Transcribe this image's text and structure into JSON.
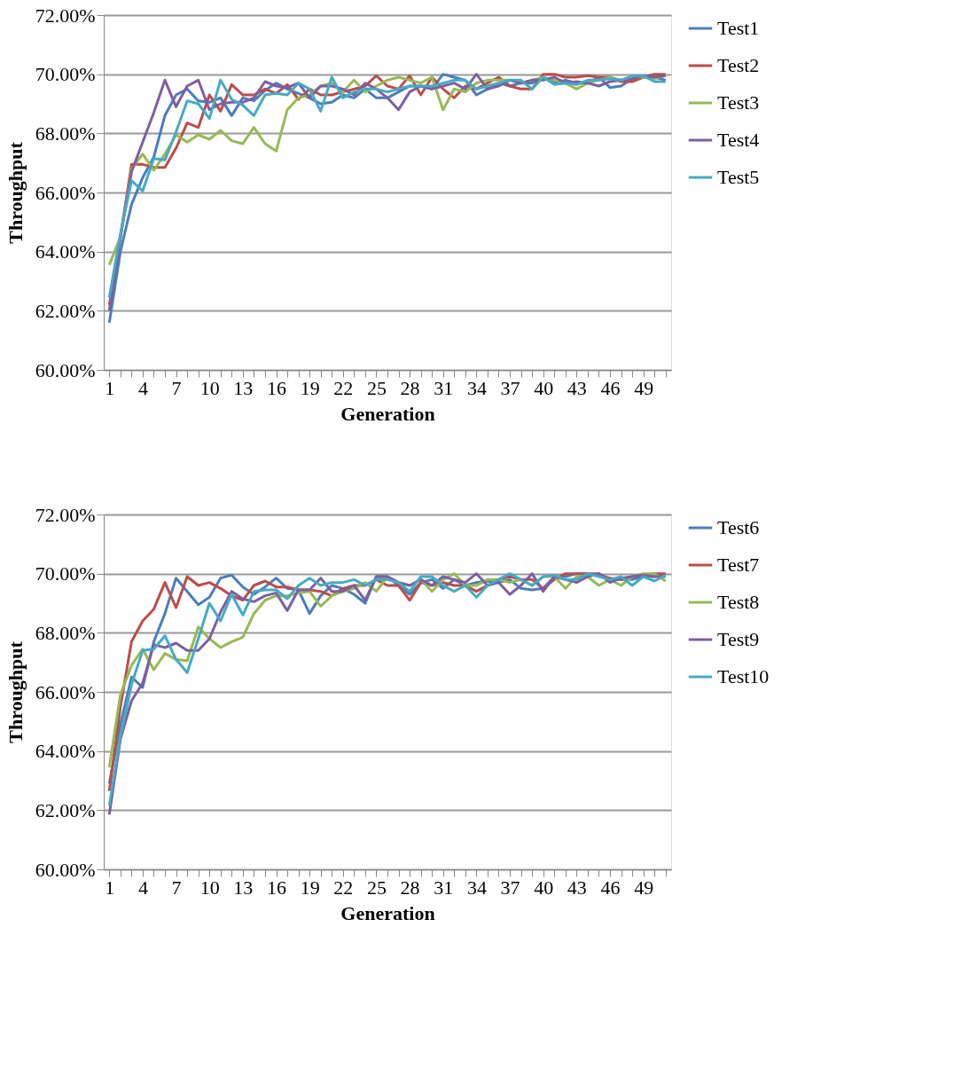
{
  "chart_data": [
    {
      "type": "line",
      "xlabel": "Generation",
      "ylabel": "Throughput",
      "legend": "right",
      "grid": "y",
      "marker": "none",
      "line_style": "solid",
      "categories": [
        "1",
        null,
        null,
        "4",
        null,
        null,
        "7",
        null,
        null,
        "10",
        null,
        null,
        "13",
        null,
        null,
        "16",
        null,
        null,
        "19",
        null,
        null,
        "22",
        null,
        null,
        "25",
        null,
        null,
        "28",
        null,
        null,
        "31",
        null,
        null,
        "34",
        null,
        null,
        "37",
        null,
        null,
        "40",
        null,
        null,
        "43",
        null,
        null,
        "46",
        null,
        null,
        "49",
        null,
        null
      ],
      "ylim": [
        60,
        72
      ],
      "yticks": [
        {
          "value": 60,
          "label": "60.00%"
        },
        {
          "value": 62,
          "label": "62.00%"
        },
        {
          "value": 64,
          "label": "64.00%"
        },
        {
          "value": 66,
          "label": "66.00%"
        },
        {
          "value": 68,
          "label": "68.00%"
        },
        {
          "value": 70,
          "label": "70.00%"
        },
        {
          "value": 72,
          "label": "72.00%"
        }
      ],
      "series": [
        {
          "name": "Test1",
          "color": "#4a7ebb",
          "values": [
            61.6,
            64.0,
            65.6,
            66.5,
            67.2,
            68.6,
            69.3,
            69.5,
            69.1,
            69.05,
            69.2,
            68.6,
            69.2,
            69.1,
            69.45,
            69.7,
            69.5,
            69.35,
            69.2,
            69.0,
            69.05,
            69.3,
            69.2,
            69.5,
            69.2,
            69.2,
            69.4,
            69.6,
            69.6,
            69.5,
            70.0,
            69.9,
            69.8,
            69.3,
            69.5,
            69.7,
            69.6,
            69.7,
            69.7,
            69.9,
            69.7,
            69.8,
            69.7,
            69.7,
            69.9,
            69.55,
            69.6,
            69.85,
            69.9,
            69.9,
            69.8
          ]
        },
        {
          "name": "Test2",
          "color": "#be4b48",
          "values": [
            62.2,
            64.5,
            66.95,
            66.95,
            66.85,
            66.85,
            67.5,
            68.35,
            68.2,
            69.3,
            68.75,
            69.65,
            69.3,
            69.3,
            69.5,
            69.35,
            69.65,
            69.15,
            69.5,
            69.3,
            69.3,
            69.4,
            69.5,
            69.6,
            69.95,
            69.6,
            69.5,
            69.95,
            69.3,
            69.9,
            69.5,
            69.2,
            69.6,
            69.5,
            69.7,
            69.9,
            69.6,
            69.5,
            69.5,
            70.0,
            70.0,
            69.9,
            69.9,
            69.95,
            69.9,
            69.9,
            69.75,
            69.75,
            69.9,
            70.0,
            70.0
          ]
        },
        {
          "name": "Test3",
          "color": "#98b954",
          "values": [
            63.55,
            64.5,
            66.8,
            67.3,
            66.75,
            67.3,
            67.95,
            67.7,
            67.95,
            67.8,
            68.1,
            67.75,
            67.65,
            68.2,
            67.65,
            67.4,
            68.8,
            69.2,
            69.3,
            69.6,
            69.7,
            69.4,
            69.8,
            69.4,
            69.6,
            69.8,
            69.9,
            69.8,
            69.7,
            69.9,
            68.8,
            69.5,
            69.4,
            69.7,
            69.8,
            69.8,
            69.8,
            69.7,
            69.8,
            69.9,
            69.8,
            69.7,
            69.5,
            69.7,
            69.8,
            69.9,
            69.8,
            69.9,
            69.9,
            69.85,
            69.95
          ]
        },
        {
          "name": "Test4",
          "color": "#7d5fa0",
          "values": [
            62.0,
            64.5,
            66.7,
            67.7,
            68.7,
            69.8,
            68.9,
            69.6,
            69.8,
            68.8,
            69.0,
            69.05,
            69.05,
            69.2,
            69.75,
            69.6,
            69.55,
            69.7,
            69.2,
            69.6,
            69.6,
            69.5,
            69.3,
            69.7,
            69.5,
            69.2,
            68.8,
            69.4,
            69.6,
            69.5,
            69.6,
            69.7,
            69.5,
            70.0,
            69.5,
            69.6,
            69.8,
            69.7,
            69.8,
            69.8,
            69.9,
            69.7,
            69.75,
            69.7,
            69.6,
            69.75,
            69.8,
            69.85,
            69.95,
            69.9,
            69.95
          ]
        },
        {
          "name": "Test5",
          "color": "#46aac5",
          "values": [
            62.45,
            64.6,
            66.4,
            66.05,
            67.15,
            67.1,
            68.05,
            69.1,
            69.0,
            68.5,
            69.8,
            69.15,
            68.95,
            68.6,
            69.3,
            69.35,
            69.3,
            69.7,
            69.5,
            68.75,
            69.9,
            69.2,
            69.4,
            69.5,
            69.5,
            69.4,
            69.5,
            69.6,
            69.6,
            69.6,
            69.7,
            69.8,
            69.8,
            69.5,
            69.6,
            69.7,
            69.8,
            69.8,
            69.5,
            69.9,
            69.65,
            69.7,
            69.65,
            69.8,
            69.8,
            69.85,
            69.8,
            69.95,
            69.95,
            69.75,
            69.75
          ]
        }
      ]
    },
    {
      "type": "line",
      "xlabel": "Generation",
      "ylabel": "Throughput",
      "legend": "right",
      "grid": "y",
      "marker": "none",
      "line_style": "solid",
      "categories": [
        "1",
        null,
        null,
        "4",
        null,
        null,
        "7",
        null,
        null,
        "10",
        null,
        null,
        "13",
        null,
        null,
        "16",
        null,
        null,
        "19",
        null,
        null,
        "22",
        null,
        null,
        "25",
        null,
        null,
        "28",
        null,
        null,
        "31",
        null,
        null,
        "34",
        null,
        null,
        "37",
        null,
        null,
        "40",
        null,
        null,
        "43",
        null,
        null,
        "46",
        null,
        null,
        "49",
        null,
        null
      ],
      "ylim": [
        60,
        72
      ],
      "yticks": [
        {
          "value": 60,
          "label": "60.00%"
        },
        {
          "value": 62,
          "label": "62.00%"
        },
        {
          "value": 64,
          "label": "64.00%"
        },
        {
          "value": 66,
          "label": "66.00%"
        },
        {
          "value": 68,
          "label": "68.00%"
        },
        {
          "value": 70,
          "label": "70.00%"
        },
        {
          "value": 72,
          "label": "72.00%"
        }
      ],
      "series": [
        {
          "name": "Test6",
          "color": "#4a7ebb",
          "values": [
            62.9,
            64.9,
            66.5,
            66.15,
            67.7,
            68.65,
            69.85,
            69.4,
            68.95,
            69.2,
            69.85,
            69.95,
            69.55,
            69.3,
            69.55,
            69.85,
            69.5,
            69.45,
            68.65,
            69.25,
            69.6,
            69.5,
            69.3,
            69.0,
            69.9,
            69.9,
            69.6,
            69.3,
            69.7,
            69.8,
            69.5,
            69.8,
            69.6,
            69.7,
            69.75,
            69.7,
            69.8,
            69.5,
            69.45,
            69.5,
            69.9,
            69.9,
            70.0,
            70.0,
            70.0,
            69.8,
            69.8,
            69.8,
            69.9,
            69.9,
            70.0
          ]
        },
        {
          "name": "Test7",
          "color": "#be4b48",
          "values": [
            62.65,
            65.5,
            67.7,
            68.4,
            68.8,
            69.7,
            68.85,
            69.9,
            69.6,
            69.7,
            69.5,
            69.25,
            69.1,
            69.6,
            69.75,
            69.55,
            69.55,
            69.45,
            69.45,
            69.4,
            69.25,
            69.5,
            69.6,
            69.6,
            69.8,
            69.6,
            69.6,
            69.1,
            69.7,
            69.6,
            69.7,
            69.6,
            69.6,
            69.4,
            69.6,
            69.8,
            69.9,
            69.8,
            69.8,
            69.5,
            69.8,
            70.0,
            70.0,
            70.0,
            69.95,
            69.85,
            69.8,
            69.9,
            69.95,
            70.0,
            70.0
          ]
        },
        {
          "name": "Test8",
          "color": "#98b954",
          "values": [
            63.45,
            65.9,
            66.9,
            67.45,
            66.75,
            67.3,
            67.1,
            67.05,
            68.2,
            67.8,
            67.5,
            67.7,
            67.85,
            68.65,
            69.1,
            69.25,
            69.25,
            69.35,
            69.4,
            68.9,
            69.25,
            69.4,
            69.5,
            69.7,
            69.4,
            69.9,
            69.7,
            69.6,
            69.8,
            69.4,
            69.8,
            70.0,
            69.6,
            69.6,
            69.8,
            69.8,
            69.7,
            69.8,
            69.6,
            69.9,
            69.9,
            69.5,
            69.9,
            69.9,
            69.6,
            69.8,
            69.6,
            69.9,
            70.0,
            70.0,
            69.75
          ]
        },
        {
          "name": "Test9",
          "color": "#7d5fa0",
          "values": [
            61.85,
            64.4,
            65.7,
            66.3,
            67.6,
            67.5,
            67.65,
            67.4,
            67.4,
            67.8,
            68.7,
            69.4,
            69.15,
            69.05,
            69.25,
            69.35,
            68.75,
            69.45,
            69.45,
            69.85,
            69.4,
            69.4,
            69.6,
            69.1,
            69.9,
            69.9,
            69.7,
            69.6,
            69.8,
            69.6,
            69.9,
            69.8,
            69.7,
            70.0,
            69.6,
            69.7,
            69.3,
            69.6,
            70.0,
            69.4,
            69.9,
            69.8,
            69.7,
            69.9,
            70.0,
            69.7,
            69.85,
            69.9,
            69.95,
            69.9,
            69.9
          ]
        },
        {
          "name": "Test10",
          "color": "#46aac5",
          "values": [
            62.15,
            64.5,
            66.25,
            67.4,
            67.45,
            67.9,
            67.1,
            66.65,
            67.8,
            69.0,
            68.4,
            69.3,
            68.6,
            69.4,
            69.45,
            69.45,
            69.15,
            69.6,
            69.85,
            69.6,
            69.7,
            69.7,
            69.8,
            69.6,
            69.8,
            69.8,
            69.7,
            69.4,
            69.9,
            69.9,
            69.6,
            69.4,
            69.6,
            69.2,
            69.6,
            69.8,
            70.0,
            69.8,
            69.6,
            69.9,
            69.95,
            69.8,
            69.8,
            70.0,
            69.9,
            69.8,
            69.9,
            69.6,
            69.9,
            69.75,
            69.95
          ]
        }
      ]
    }
  ]
}
